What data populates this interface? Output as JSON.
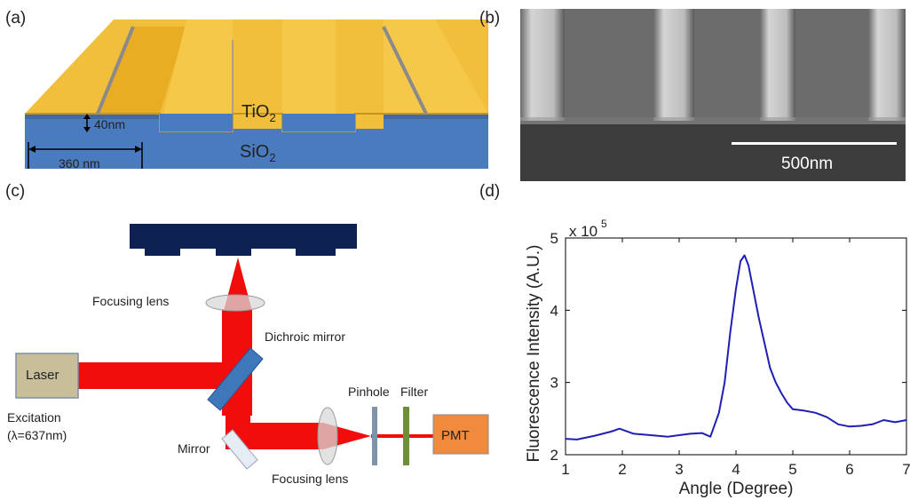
{
  "panels": {
    "a": {
      "label": "(a)",
      "top_material": "TiO",
      "top_subscript": "2",
      "bottom_material": "SiO",
      "bottom_subscript": "2",
      "thickness": "40nm",
      "period": "360 nm",
      "colors": {
        "tio2": "#f2bf3c",
        "sio2": "#4a7bbf"
      }
    },
    "b": {
      "label": "(b)",
      "scale_bar": "500nm"
    },
    "c": {
      "label": "(c)",
      "laser": "Laser",
      "excitation": "Excitation",
      "wavelength": "(λ=637nm)",
      "focusing_lens_top": "Focusing lens",
      "dichroic_mirror": "Dichroic mirror",
      "mirror": "Mirror",
      "pinhole": "Pinhole",
      "filter": "Filter",
      "pmt": "PMT",
      "focusing_lens_bottom": "Focusing lens",
      "colors": {
        "beam": "#f20d0d",
        "laser_box": "#c8bf9a",
        "pmt_box": "#f08a3c",
        "grating": "#0d2152"
      }
    },
    "d": {
      "label": "(d)"
    }
  },
  "chart_data": {
    "type": "line",
    "xlabel": "Angle (Degree)",
    "ylabel": "Fluorescence Intensity (A.U.)",
    "y_multiplier": "x 10",
    "y_multiplier_exp": "5",
    "xlim": [
      1,
      7
    ],
    "ylim": [
      2,
      5
    ],
    "xticks": [
      "1",
      "2",
      "3",
      "4",
      "5",
      "6",
      "7"
    ],
    "yticks": [
      "2",
      "3",
      "4",
      "5"
    ],
    "grid": false,
    "series": [
      {
        "color": "#1f1fb4",
        "x": [
          1.0,
          1.2,
          1.5,
          1.8,
          1.95,
          2.2,
          2.5,
          2.8,
          3.0,
          3.2,
          3.4,
          3.55,
          3.7,
          3.8,
          3.9,
          4.0,
          4.08,
          4.15,
          4.22,
          4.3,
          4.4,
          4.5,
          4.6,
          4.7,
          4.8,
          4.9,
          5.0,
          5.2,
          5.4,
          5.6,
          5.8,
          6.0,
          6.2,
          6.4,
          6.6,
          6.8,
          7.0
        ],
        "y": [
          2.22,
          2.21,
          2.26,
          2.32,
          2.36,
          2.29,
          2.27,
          2.25,
          2.27,
          2.29,
          2.3,
          2.25,
          2.58,
          3.0,
          3.7,
          4.3,
          4.68,
          4.76,
          4.62,
          4.3,
          3.9,
          3.55,
          3.2,
          3.0,
          2.85,
          2.72,
          2.63,
          2.61,
          2.58,
          2.52,
          2.42,
          2.39,
          2.4,
          2.42,
          2.48,
          2.45,
          2.48
        ]
      }
    ]
  }
}
